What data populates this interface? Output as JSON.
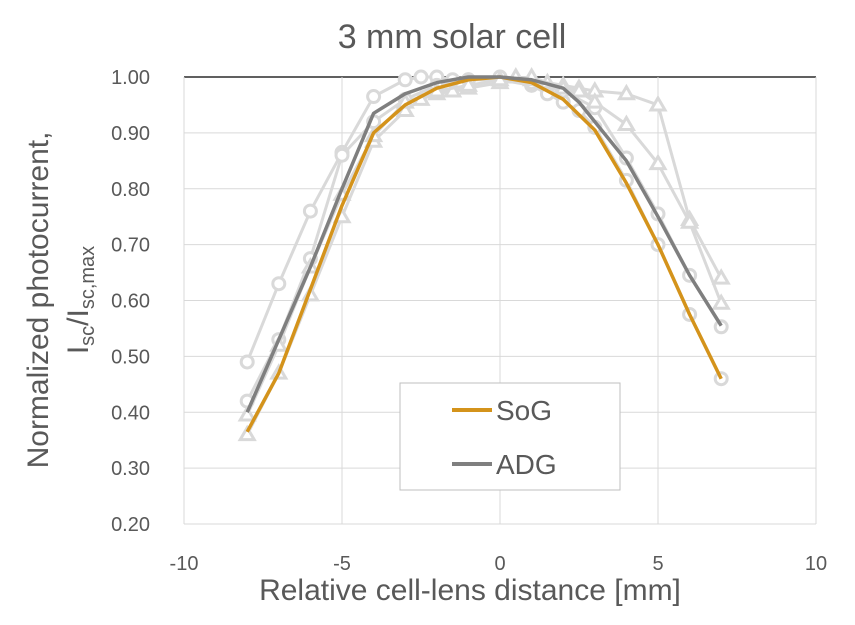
{
  "chart_data": {
    "type": "line",
    "title": "3 mm solar cell",
    "xlabel": "Relative cell-lens distance [mm]",
    "ylabel_line1": "Normalized photocurrent,",
    "ylabel_line2": {
      "main": "I",
      "sub1": "sc",
      "slash": "/I",
      "sub2": "sc,max"
    },
    "xlim": [
      -10,
      10
    ],
    "ylim": [
      0.2,
      1.0
    ],
    "xticks": [
      -10,
      -5,
      0,
      5,
      10
    ],
    "xtick_labels": [
      "-10",
      "-5",
      "0",
      "5",
      "10"
    ],
    "yticks": [
      0.2,
      0.3,
      0.4,
      0.5,
      0.6,
      0.7,
      0.8,
      0.9,
      1.0
    ],
    "ytick_labels": [
      "0.20",
      "0.30",
      "0.40",
      "0.50",
      "0.60",
      "0.70",
      "0.80",
      "0.90",
      "1.00"
    ],
    "grid": true,
    "legend_position": "bottom-center",
    "series": [
      {
        "name": "measurement-circles-a",
        "legend": false,
        "color": "#d9d9d9",
        "marker": "circle",
        "x": [
          -8,
          -7,
          -6,
          -5,
          -4,
          -3,
          -2.5,
          -2,
          -1.5,
          -1,
          0,
          1,
          1.5,
          2,
          2.5,
          3,
          4,
          5,
          6,
          7
        ],
        "y": [
          0.49,
          0.63,
          0.76,
          0.865,
          0.965,
          0.995,
          1.0,
          1.0,
          0.995,
          0.995,
          0.995,
          0.985,
          0.97,
          0.955,
          0.94,
          0.91,
          0.815,
          0.7,
          0.575,
          0.46
        ]
      },
      {
        "name": "measurement-circles-b",
        "legend": false,
        "color": "#d9d9d9",
        "marker": "circle",
        "x": [
          -8,
          -7,
          -6,
          -5,
          -4,
          -3,
          -2,
          -1,
          0,
          1,
          2,
          3,
          4,
          5,
          6,
          7
        ],
        "y": [
          0.42,
          0.53,
          0.675,
          0.86,
          0.92,
          0.96,
          0.985,
          0.995,
          1.0,
          0.99,
          0.975,
          0.945,
          0.855,
          0.755,
          0.645,
          0.553
        ]
      },
      {
        "name": "measurement-triangles-a",
        "legend": false,
        "color": "#d9d9d9",
        "marker": "triangle",
        "x": [
          -8,
          -7,
          -6,
          -5,
          -4,
          -3,
          -2.5,
          -2,
          -1.5,
          -1,
          0,
          0.5,
          1,
          1.5,
          2,
          2.5,
          3,
          4,
          5,
          6,
          7
        ],
        "y": [
          0.36,
          0.47,
          0.61,
          0.75,
          0.885,
          0.94,
          0.96,
          0.97,
          0.975,
          0.98,
          0.99,
          1.0,
          0.995,
          0.99,
          0.985,
          0.98,
          0.975,
          0.97,
          0.95,
          0.745,
          0.64
        ]
      },
      {
        "name": "measurement-triangles-b",
        "legend": false,
        "color": "#d9d9d9",
        "marker": "triangle",
        "x": [
          -8,
          -7,
          -6,
          -5,
          -4,
          -3,
          -2,
          -1,
          0,
          1,
          2,
          2.5,
          3,
          4,
          5,
          6,
          7
        ],
        "y": [
          0.395,
          0.52,
          0.66,
          0.79,
          0.895,
          0.955,
          0.975,
          0.985,
          0.995,
          1.0,
          0.98,
          0.975,
          0.955,
          0.915,
          0.845,
          0.74,
          0.595
        ]
      },
      {
        "name": "SoG",
        "legend": true,
        "color": "#d4931b",
        "marker": "none",
        "x": [
          -8,
          -7,
          -6,
          -5,
          -4,
          -3,
          -2,
          -1,
          0,
          1,
          2,
          3,
          4,
          5,
          6,
          7
        ],
        "y": [
          0.365,
          0.47,
          0.62,
          0.77,
          0.9,
          0.95,
          0.98,
          0.995,
          1.0,
          0.99,
          0.96,
          0.905,
          0.81,
          0.7,
          0.575,
          0.46
        ]
      },
      {
        "name": "ADG",
        "legend": true,
        "color": "#7f7f7f",
        "marker": "none",
        "x": [
          -8,
          -7,
          -6,
          -5,
          -4,
          -3,
          -2,
          -1,
          0,
          1,
          2,
          2.5,
          3,
          4,
          5,
          6,
          7
        ],
        "y": [
          0.4,
          0.53,
          0.66,
          0.8,
          0.935,
          0.97,
          0.99,
          1.0,
          1.0,
          0.995,
          0.98,
          0.955,
          0.92,
          0.85,
          0.75,
          0.645,
          0.555
        ]
      }
    ]
  }
}
